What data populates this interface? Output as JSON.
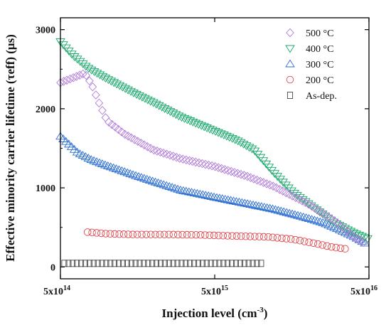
{
  "chart_data": {
    "type": "scatter",
    "xlabel_main": "Injection level (cm",
    "xlabel_sup": "-3",
    "xlabel_end": ")",
    "ylabel": "Effective minority carrier lifetime (τeff) (μs)",
    "x_scale": "log",
    "xlim": [
      500000000000000.0,
      5e+16
    ],
    "ylim": [
      -150,
      3150
    ],
    "x_ticks": [
      {
        "value": 500000000000000.0,
        "mant": "5x10",
        "exp": "14"
      },
      {
        "value": 5000000000000000.0,
        "mant": "5x10",
        "exp": "15"
      },
      {
        "value": 5e+16,
        "mant": "5x10",
        "exp": "16"
      }
    ],
    "y_ticks": [
      {
        "value": 0,
        "label": "0"
      },
      {
        "value": 1000,
        "label": "1000"
      },
      {
        "value": 2000,
        "label": "2000"
      },
      {
        "value": 3000,
        "label": "3000"
      }
    ],
    "grid": false,
    "legend_position": "top-right",
    "series": [
      {
        "name": "500 °C",
        "marker": "diamond",
        "color": "#b07cd8",
        "curve": [
          [
            500000000000000.0,
            2330
          ],
          [
            620000000000000.0,
            2400
          ],
          [
            720000000000000.0,
            2450
          ],
          [
            800000000000000.0,
            2300
          ],
          [
            900000000000000.0,
            2050
          ],
          [
            1000000000000000.0,
            1850
          ],
          [
            1300000000000000.0,
            1680
          ],
          [
            2000000000000000.0,
            1480
          ],
          [
            3000000000000000.0,
            1370
          ],
          [
            5000000000000000.0,
            1270
          ],
          [
            8000000000000000.0,
            1150
          ],
          [
            1.2e+16,
            1020
          ],
          [
            2e+16,
            800
          ],
          [
            3e+16,
            580
          ],
          [
            4e+16,
            380
          ],
          [
            4.6e+16,
            310
          ]
        ],
        "count": 95
      },
      {
        "name": "400 °C",
        "marker": "triangle-down",
        "color": "#19a86b",
        "curve": [
          [
            500000000000000.0,
            2850
          ],
          [
            600000000000000.0,
            2680
          ],
          [
            750000000000000.0,
            2520
          ],
          [
            1000000000000000.0,
            2380
          ],
          [
            1500000000000000.0,
            2200
          ],
          [
            2000000000000000.0,
            2080
          ],
          [
            3000000000000000.0,
            1900
          ],
          [
            5000000000000000.0,
            1720
          ],
          [
            7000000000000000.0,
            1600
          ],
          [
            9000000000000000.0,
            1480
          ],
          [
            1.2e+16,
            1200
          ],
          [
            1.6e+16,
            950
          ],
          [
            2.2e+16,
            750
          ],
          [
            3e+16,
            560
          ],
          [
            4e+16,
            430
          ],
          [
            4.9e+16,
            360
          ]
        ],
        "count": 110
      },
      {
        "name": "300 °C",
        "marker": "triangle-up",
        "color": "#2d6fd0",
        "curve": [
          [
            500000000000000.0,
            1650
          ],
          [
            560000000000000.0,
            1560
          ],
          [
            650000000000000.0,
            1440
          ],
          [
            800000000000000.0,
            1350
          ],
          [
            1000000000000000.0,
            1280
          ],
          [
            1500000000000000.0,
            1160
          ],
          [
            2000000000000000.0,
            1080
          ],
          [
            3000000000000000.0,
            970
          ],
          [
            5000000000000000.0,
            880
          ],
          [
            8000000000000000.0,
            800
          ],
          [
            1.2e+16,
            730
          ],
          [
            1.8e+16,
            640
          ],
          [
            2.5e+16,
            560
          ],
          [
            3.2e+16,
            470
          ],
          [
            4e+16,
            380
          ],
          [
            4.7e+16,
            300
          ]
        ],
        "count": 110
      },
      {
        "name": "200 °C",
        "marker": "circle",
        "color": "#e0474c",
        "curve": [
          [
            750000000000000.0,
            440
          ],
          [
            1000000000000000.0,
            420
          ],
          [
            1500000000000000.0,
            410
          ],
          [
            2500000000000000.0,
            410
          ],
          [
            4000000000000000.0,
            405
          ],
          [
            7000000000000000.0,
            390
          ],
          [
            1.1e+16,
            380
          ],
          [
            1.6e+16,
            350
          ],
          [
            2.2e+16,
            300
          ],
          [
            2.9e+16,
            250
          ],
          [
            3.5e+16,
            230
          ]
        ],
        "count": 58
      },
      {
        "name": "As-dep.",
        "marker": "square",
        "color": "#444444",
        "curve": [
          [
            530000000000000.0,
            45
          ],
          [
            3000000000000000.0,
            45
          ],
          [
            1e+16,
            45
          ]
        ],
        "count": 48
      }
    ]
  }
}
